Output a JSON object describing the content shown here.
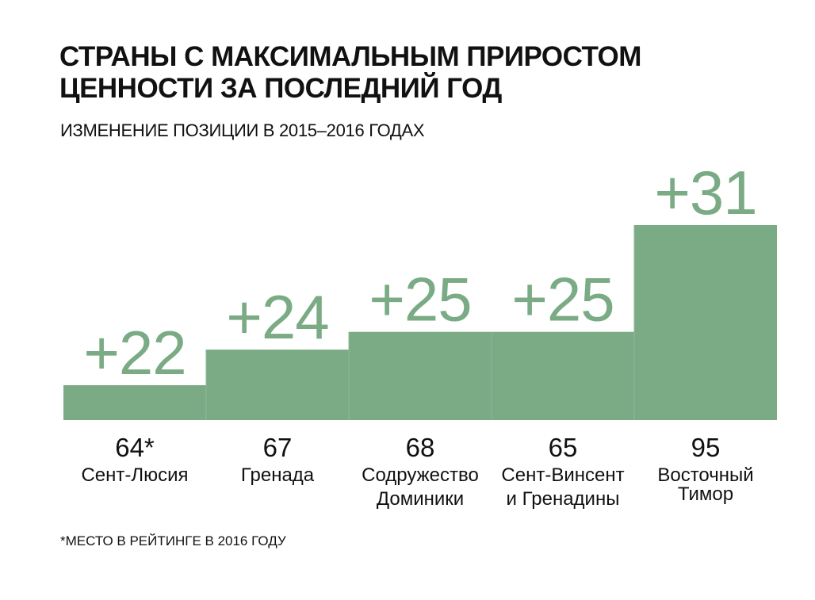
{
  "title": "СТРАНЫ С МАКСИМАЛЬНЫМ ПРИРОСТОМ\nЦЕННОСТИ ЗА ПОСЛЕДНИЙ ГОД",
  "subtitle": "ИЗМЕНЕНИЕ ПОЗИЦИИ В 2015–2016 ГОДАХ",
  "footnote": "*МЕСТО В РЕЙТИНГЕ В 2016 ГОДУ",
  "colors": {
    "bar": "#7aab84",
    "bar_separator": "#8fb898",
    "delta_text": "#7aab84",
    "text": "#111111"
  },
  "chart_data": {
    "type": "bar",
    "title": "СТРАНЫ С МАКСИМАЛЬНЫМ ПРИРОСТОМ ЦЕННОСТИ ЗА ПОСЛЕДНИЙ ГОД",
    "subtitle": "ИЗМЕНЕНИЕ ПОЗИЦИИ В 2015–2016 ГОДАХ",
    "xlabel": "",
    "ylabel": "",
    "grid": false,
    "categories": [
      "Сент-Люсия",
      "Гренада",
      "Содружество Доминики",
      "Сент-Винсент и Гренадины",
      "Восточный Тимор"
    ],
    "values": [
      22,
      24,
      25,
      25,
      31
    ],
    "value_labels": [
      "+22",
      "+24",
      "+25",
      "+25",
      "+31"
    ],
    "ranks_2016": [
      "64*",
      "67",
      "68",
      "65",
      "95"
    ],
    "category_lines": [
      [
        "Сент-Люсия"
      ],
      [
        "Гренада"
      ],
      [
        "Содружество",
        "Доминики"
      ],
      [
        "Сент-Винсент",
        "и Гренадины"
      ],
      [
        "Восточный",
        "Тимор"
      ]
    ]
  }
}
